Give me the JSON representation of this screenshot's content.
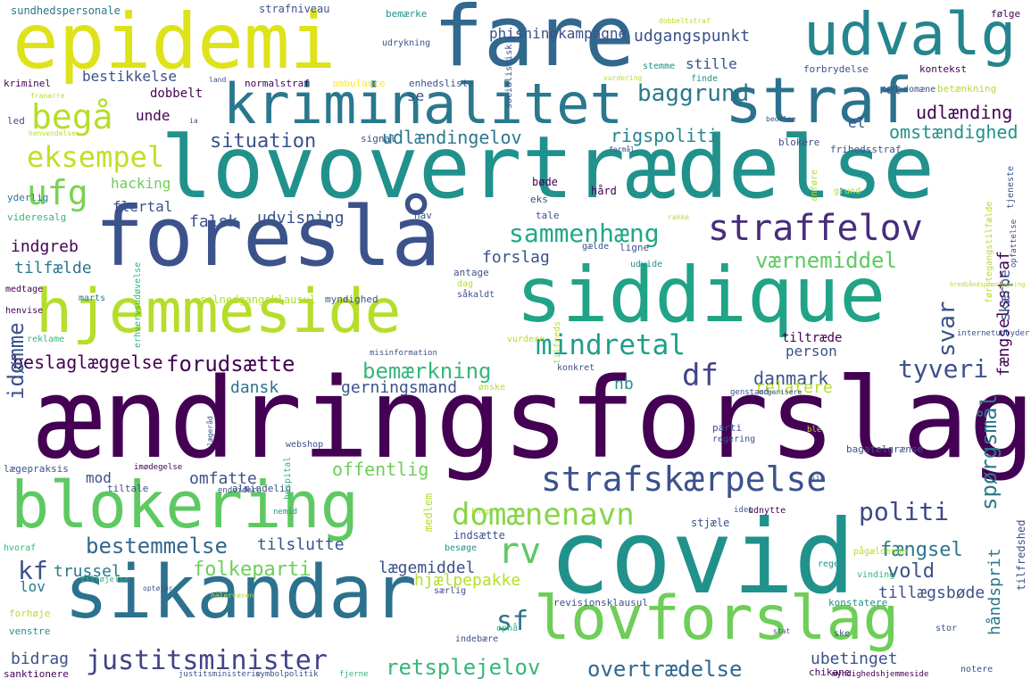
{
  "words": [
    {
      "text": "ændringsforslag",
      "color": "#440154",
      "vertical": false
    },
    {
      "text": "lovovertrædelse",
      "color": "#21918c",
      "vertical": false
    },
    {
      "text": "covid",
      "color": "#21918c",
      "vertical": false
    },
    {
      "text": "fare",
      "color": "#31688e",
      "vertical": false
    },
    {
      "text": "epidemi",
      "color": "#dde318",
      "vertical": false
    },
    {
      "text": "foreslå",
      "color": "#3b528b",
      "vertical": false
    },
    {
      "text": "sikandar",
      "color": "#2c728e",
      "vertical": false
    },
    {
      "text": "siddique",
      "color": "#20a386",
      "vertical": false
    },
    {
      "text": "blokering",
      "color": "#5ec962",
      "vertical": false
    },
    {
      "text": "kriminalitet",
      "color": "#29788e",
      "vertical": false
    },
    {
      "text": "hjemmeside",
      "color": "#b5de2b",
      "vertical": false
    },
    {
      "text": "straf",
      "color": "#2c728e",
      "vertical": false
    },
    {
      "text": "udvalg",
      "color": "#25858e",
      "vertical": false
    },
    {
      "text": "lovforslag",
      "color": "#6ece58",
      "vertical": false
    },
    {
      "text": "straffelov",
      "color": "#472d7b",
      "vertical": false
    },
    {
      "text": "strafskærpelse",
      "color": "#3b528b",
      "vertical": false
    },
    {
      "text": "justitsminister",
      "color": "#414487",
      "vertical": false
    },
    {
      "text": "domænenavn",
      "color": "#86d549",
      "vertical": false
    },
    {
      "text": "mindretal",
      "color": "#1f9e89",
      "vertical": false
    },
    {
      "text": "sammenhæng",
      "color": "#22a884",
      "vertical": false
    },
    {
      "text": "begå",
      "color": "#b5de2b",
      "vertical": false
    },
    {
      "text": "eksempel",
      "color": "#c2df23",
      "vertical": false
    },
    {
      "text": "ufg",
      "color": "#7ad151",
      "vertical": false
    },
    {
      "text": "rv",
      "color": "#5ec962",
      "vertical": false
    },
    {
      "text": "df",
      "color": "#414487",
      "vertical": false
    },
    {
      "text": "sf",
      "color": "#2c728e",
      "vertical": false
    },
    {
      "text": "kf",
      "color": "#3b528b",
      "vertical": false
    },
    {
      "text": "retsplejelov",
      "color": "#35b779",
      "vertical": false
    },
    {
      "text": "overtrædelse",
      "color": "#31688e",
      "vertical": false
    },
    {
      "text": "bestemmelse",
      "color": "#31688e",
      "vertical": false
    },
    {
      "text": "folkeparti",
      "color": "#6ece58",
      "vertical": false
    },
    {
      "text": "politi",
      "color": "#3e4989",
      "vertical": false
    },
    {
      "text": "situation",
      "color": "#3b528b",
      "vertical": false
    },
    {
      "text": "baggrund",
      "color": "#2a788e",
      "vertical": false
    },
    {
      "text": "forudsætte",
      "color": "#440154",
      "vertical": false
    },
    {
      "text": "bemærkning",
      "color": "#35b779",
      "vertical": false
    },
    {
      "text": "tyveri",
      "color": "#3b528b",
      "vertical": false
    },
    {
      "text": "værnemiddel",
      "color": "#5ec962",
      "vertical": false
    },
    {
      "text": "udvisning",
      "color": "#3b528b",
      "vertical": false
    },
    {
      "text": "falsk",
      "color": "#3b528b",
      "vertical": false
    },
    {
      "text": "forslag",
      "color": "#3b528b",
      "vertical": false
    },
    {
      "text": "indgreb",
      "color": "#440154",
      "vertical": false
    },
    {
      "text": "tilfælde",
      "color": "#2a788e",
      "vertical": false
    },
    {
      "text": "hacking",
      "color": "#6ece58",
      "vertical": false
    },
    {
      "text": "flertal",
      "color": "#3b528b",
      "vertical": false
    },
    {
      "text": "udlænding",
      "color": "#440154",
      "vertical": false
    },
    {
      "text": "udlændingelov",
      "color": "#2a788e",
      "vertical": false
    },
    {
      "text": "rigspoliti",
      "color": "#25858e",
      "vertical": false
    },
    {
      "text": "omstændighed",
      "color": "#21918c",
      "vertical": false
    },
    {
      "text": "beslaglæggelse",
      "color": "#440154",
      "vertical": false
    },
    {
      "text": "dansk",
      "color": "#2c728e",
      "vertical": false
    },
    {
      "text": "gerningsmand",
      "color": "#3b528b",
      "vertical": false
    },
    {
      "text": "danmark",
      "color": "#3b528b",
      "vertical": false
    },
    {
      "text": "relatere",
      "color": "#b5de2b",
      "vertical": false
    },
    {
      "text": "nb",
      "color": "#21918c",
      "vertical": false
    },
    {
      "text": "offentlig",
      "color": "#6ece58",
      "vertical": false
    },
    {
      "text": "omfatte",
      "color": "#3b528b",
      "vertical": false
    },
    {
      "text": "mod",
      "color": "#3b528b",
      "vertical": false
    },
    {
      "text": "trussel",
      "color": "#2a788e",
      "vertical": false
    },
    {
      "text": "lægemiddel",
      "color": "#3b528b",
      "vertical": false
    },
    {
      "text": "hjælpepakke",
      "color": "#b5de2b",
      "vertical": false
    },
    {
      "text": "tilslutte",
      "color": "#3b528b",
      "vertical": false
    },
    {
      "text": "fængsel",
      "color": "#2a788e",
      "vertical": false
    },
    {
      "text": "vold",
      "color": "#3b528b",
      "vertical": false
    },
    {
      "text": "tillægsbøde",
      "color": "#3b528b",
      "vertical": false
    },
    {
      "text": "ubetinget",
      "color": "#3b528b",
      "vertical": false
    },
    {
      "text": "bidrag",
      "color": "#3b528b",
      "vertical": false
    },
    {
      "text": "lov",
      "color": "#2a788e",
      "vertical": false
    },
    {
      "text": "person",
      "color": "#3b528b",
      "vertical": false
    },
    {
      "text": "tiltræde",
      "color": "#440154",
      "vertical": false
    },
    {
      "text": "el",
      "color": "#3b528b",
      "vertical": false
    },
    {
      "text": "stille",
      "color": "#3b528b",
      "vertical": false
    },
    {
      "text": "udgangspunkt",
      "color": "#3b528b",
      "vertical": false
    },
    {
      "text": "phishingkampagne",
      "color": "#3b528b",
      "vertical": false
    },
    {
      "text": "dobbelt",
      "color": "#440154",
      "vertical": false
    },
    {
      "text": "bestikkelse",
      "color": "#3b528b",
      "vertical": false
    },
    {
      "text": "unde",
      "color": "#440154",
      "vertical": false
    },
    {
      "text": "se",
      "color": "#3b528b",
      "vertical": false
    },
    {
      "text": "ret",
      "color": "#3b528b",
      "vertical": false
    },
    {
      "text": "svar",
      "color": "#3b528b",
      "vertical": true
    },
    {
      "text": "idømme",
      "color": "#3b528b",
      "vertical": true
    },
    {
      "text": "spørgsmål",
      "color": "#2a788e",
      "vertical": true
    },
    {
      "text": "fængselsstraf",
      "color": "#440154",
      "vertical": true
    },
    {
      "text": "skærpe",
      "color": "#3b528b",
      "vertical": true
    },
    {
      "text": "håndsprit",
      "color": "#2a788e",
      "vertical": true
    },
    {
      "text": "sundhedspersonale",
      "color": "#2a788e",
      "vertical": false
    },
    {
      "text": "strafniveau",
      "color": "#3b528b",
      "vertical": false
    },
    {
      "text": "bemærke",
      "color": "#21918c",
      "vertical": false
    },
    {
      "text": "kriminel",
      "color": "#440154",
      "vertical": false
    },
    {
      "text": "normalstraf",
      "color": "#440154",
      "vertical": false
    },
    {
      "text": "ambulance",
      "color": "#fde725",
      "vertical": false
    },
    {
      "text": "enhedsliste",
      "color": "#3b528b",
      "vertical": false
    },
    {
      "text": "led",
      "color": "#3b528b",
      "vertical": false
    },
    {
      "text": "yderlig",
      "color": "#2a788e",
      "vertical": false
    },
    {
      "text": "videresalg",
      "color": "#35b779",
      "vertical": false
    },
    {
      "text": "medtage",
      "color": "#440154",
      "vertical": false
    },
    {
      "text": "henvise",
      "color": "#440154",
      "vertical": false
    },
    {
      "text": "reklame",
      "color": "#35b779",
      "vertical": false
    },
    {
      "text": "marts",
      "color": "#2a788e",
      "vertical": false
    },
    {
      "text": "solnedgangsklausul",
      "color": "#b5de2b",
      "vertical": false
    },
    {
      "text": "myndighed",
      "color": "#3b528b",
      "vertical": false
    },
    {
      "text": "lægepraksis",
      "color": "#3b528b",
      "vertical": false
    },
    {
      "text": "tiltale",
      "color": "#3b528b",
      "vertical": false
    },
    {
      "text": "almindelig",
      "color": "#3b528b",
      "vertical": false
    },
    {
      "text": "sanktionere",
      "color": "#440154",
      "vertical": false
    },
    {
      "text": "hvoraf",
      "color": "#35b779",
      "vertical": false
    },
    {
      "text": "forhøje",
      "color": "#b5de2b",
      "vertical": false
    },
    {
      "text": "venstre",
      "color": "#21918c",
      "vertical": false
    },
    {
      "text": "stjæle",
      "color": "#3b528b",
      "vertical": false
    },
    {
      "text": "udnytte",
      "color": "#440154",
      "vertical": false
    },
    {
      "text": "regel",
      "color": "#21918c",
      "vertical": false
    },
    {
      "text": "pågældende",
      "color": "#b5de2b",
      "vertical": false
    },
    {
      "text": "vinding",
      "color": "#35b779",
      "vertical": false
    },
    {
      "text": "revisionsklausul",
      "color": "#3b528b",
      "vertical": false
    },
    {
      "text": "konstatere",
      "color": "#21918c",
      "vertical": false
    },
    {
      "text": "særlig",
      "color": "#3b528b",
      "vertical": false
    },
    {
      "text": "notere",
      "color": "#3b528b",
      "vertical": false
    },
    {
      "text": "indsætte",
      "color": "#3b528b",
      "vertical": false
    },
    {
      "text": "besøge",
      "color": "#21918c",
      "vertical": false
    },
    {
      "text": "webshop",
      "color": "#3b528b",
      "vertical": false
    },
    {
      "text": "parti",
      "color": "#3b528b",
      "vertical": false
    },
    {
      "text": "regering",
      "color": "#3b528b",
      "vertical": false
    },
    {
      "text": "stor",
      "color": "#3b528b",
      "vertical": false
    },
    {
      "text": "chikane",
      "color": "#440154",
      "vertical": false
    },
    {
      "text": "indebære",
      "color": "#3b528b",
      "vertical": false
    },
    {
      "text": "opnå",
      "color": "#35b779",
      "vertical": false
    },
    {
      "text": "konkret",
      "color": "#3b528b",
      "vertical": false
    },
    {
      "text": "ønske",
      "color": "#b5de2b",
      "vertical": false
    },
    {
      "text": "vurdere",
      "color": "#b5de2b",
      "vertical": false
    },
    {
      "text": "antage",
      "color": "#3b528b",
      "vertical": false
    },
    {
      "text": "dag",
      "color": "#b5de2b",
      "vertical": false
    },
    {
      "text": "såkaldt",
      "color": "#3b528b",
      "vertical": false
    },
    {
      "text": "bøde",
      "color": "#440154",
      "vertical": false
    },
    {
      "text": "eks",
      "color": "#3b528b",
      "vertical": false
    },
    {
      "text": "hård",
      "color": "#440154",
      "vertical": false
    },
    {
      "text": "tale",
      "color": "#3b528b",
      "vertical": false
    },
    {
      "text": "hav",
      "color": "#3b528b",
      "vertical": false
    },
    {
      "text": "gælde",
      "color": "#3b528b",
      "vertical": false
    },
    {
      "text": "ligne",
      "color": "#3b528b",
      "vertical": false
    },
    {
      "text": "udvide",
      "color": "#21918c",
      "vertical": false
    },
    {
      "text": "signal",
      "color": "#3b528b",
      "vertical": false
    },
    {
      "text": "blokere",
      "color": "#3b528b",
      "vertical": false
    },
    {
      "text": "frihedsstraf",
      "color": "#3b528b",
      "vertical": false
    },
    {
      "text": "forbrydelse",
      "color": "#3b528b",
      "vertical": false
    },
    {
      "text": "kontekst",
      "color": "#440154",
      "vertical": false
    },
    {
      "text": "betænkning",
      "color": "#b5de2b",
      "vertical": false
    },
    {
      "text": "stemme",
      "color": "#21918c",
      "vertical": false
    },
    {
      "text": "finde",
      "color": "#21918c",
      "vertical": false
    },
    {
      "text": "følge",
      "color": "#440154",
      "vertical": false
    },
    {
      "text": "domæne",
      "color": "#3b528b",
      "vertical": false
    },
    {
      "text": "udrykning",
      "color": "#3b528b",
      "vertical": false
    },
    {
      "text": "bagatelgrænse",
      "color": "#3b528b",
      "vertical": false
    },
    {
      "text": "tjeneste",
      "color": "#3b528b",
      "vertical": true
    },
    {
      "text": "grund",
      "color": "#b5de2b",
      "vertical": false
    },
    {
      "text": "ske",
      "color": "#3b528b",
      "vertical": false
    },
    {
      "text": "tilfredshed",
      "color": "#3b528b",
      "vertical": true
    },
    {
      "text": "medlem",
      "color": "#b5de2b",
      "vertical": true
    },
    {
      "text": "hospital",
      "color": "#35b779",
      "vertical": true
    },
    {
      "text": "socialistisk",
      "color": "#3b528b",
      "vertical": true
    },
    {
      "text": "tilføjelse",
      "color": "#35b779",
      "vertical": false
    },
    {
      "text": "endvidere",
      "color": "#3b528b",
      "vertical": false
    },
    {
      "text": "internetudbyder",
      "color": "#3b528b",
      "vertical": false
    },
    {
      "text": "genstand",
      "color": "#3b528b",
      "vertical": false
    },
    {
      "text": "organisere",
      "color": "#3b528b",
      "vertical": false
    },
    {
      "text": "misinformation",
      "color": "#3b528b",
      "vertical": false
    },
    {
      "text": "imødegelse",
      "color": "#440154",
      "vertical": false
    },
    {
      "text": "nemid",
      "color": "#21918c",
      "vertical": false
    },
    {
      "text": "knap",
      "color": "#b5de2b",
      "vertical": false
    },
    {
      "text": "optøjer",
      "color": "#3b528b",
      "vertical": false
    },
    {
      "text": "halervæsen",
      "color": "#b5de2b",
      "vertical": false
    },
    {
      "text": "justitsministerie",
      "color": "#3b528b",
      "vertical": false
    },
    {
      "text": "symbolpolitik",
      "color": "#3b528b",
      "vertical": false
    },
    {
      "text": "fjerne",
      "color": "#35b779",
      "vertical": false
    },
    {
      "text": "myndighedshjemmeside",
      "color": "#440154",
      "vertical": false
    },
    {
      "text": "land",
      "color": "#3b528b",
      "vertical": false
    },
    {
      "text": "franarre",
      "color": "#b5de2b",
      "vertical": false
    },
    {
      "text": "henvendelse",
      "color": "#b5de2b",
      "vertical": false
    },
    {
      "text": "ia",
      "color": "#3b528b",
      "vertical": false
    },
    {
      "text": "vurdering",
      "color": "#b5de2b",
      "vertical": false
    },
    {
      "text": "bedelse",
      "color": "#3b528b",
      "vertical": false
    },
    {
      "text": "anføre",
      "color": "#b5de2b",
      "vertical": true
    },
    {
      "text": "formål",
      "color": "#3b528b",
      "vertical": false
    },
    {
      "text": "rakke",
      "color": "#b5de2b",
      "vertical": false
    },
    {
      "text": "erhvervsudøvelse",
      "color": "#35b779",
      "vertical": true
    },
    {
      "text": "førstegangstilfælde",
      "color": "#b5de2b",
      "vertical": true
    },
    {
      "text": "opfattelse",
      "color": "#3b528b",
      "vertical": true
    },
    {
      "text": "tilfreds",
      "color": "#b5de2b",
      "vertical": true
    },
    {
      "text": "ble",
      "color": "#b5de2b",
      "vertical": false
    },
    {
      "text": "siu",
      "color": "#3b528b",
      "vertical": false
    },
    {
      "text": "dobbeltstraf",
      "color": "#b5de2b",
      "vertical": false
    },
    {
      "text": "idet",
      "color": "#3b528b",
      "vertical": false
    },
    {
      "text": "lægeråd",
      "color": "#3b528b",
      "vertical": true
    },
    {
      "text": "bredbåndsplanlægning",
      "color": "#b5de2b",
      "vertical": false
    },
    {
      "text": "stat",
      "color": "#3b528b",
      "vertical": false
    }
  ]
}
